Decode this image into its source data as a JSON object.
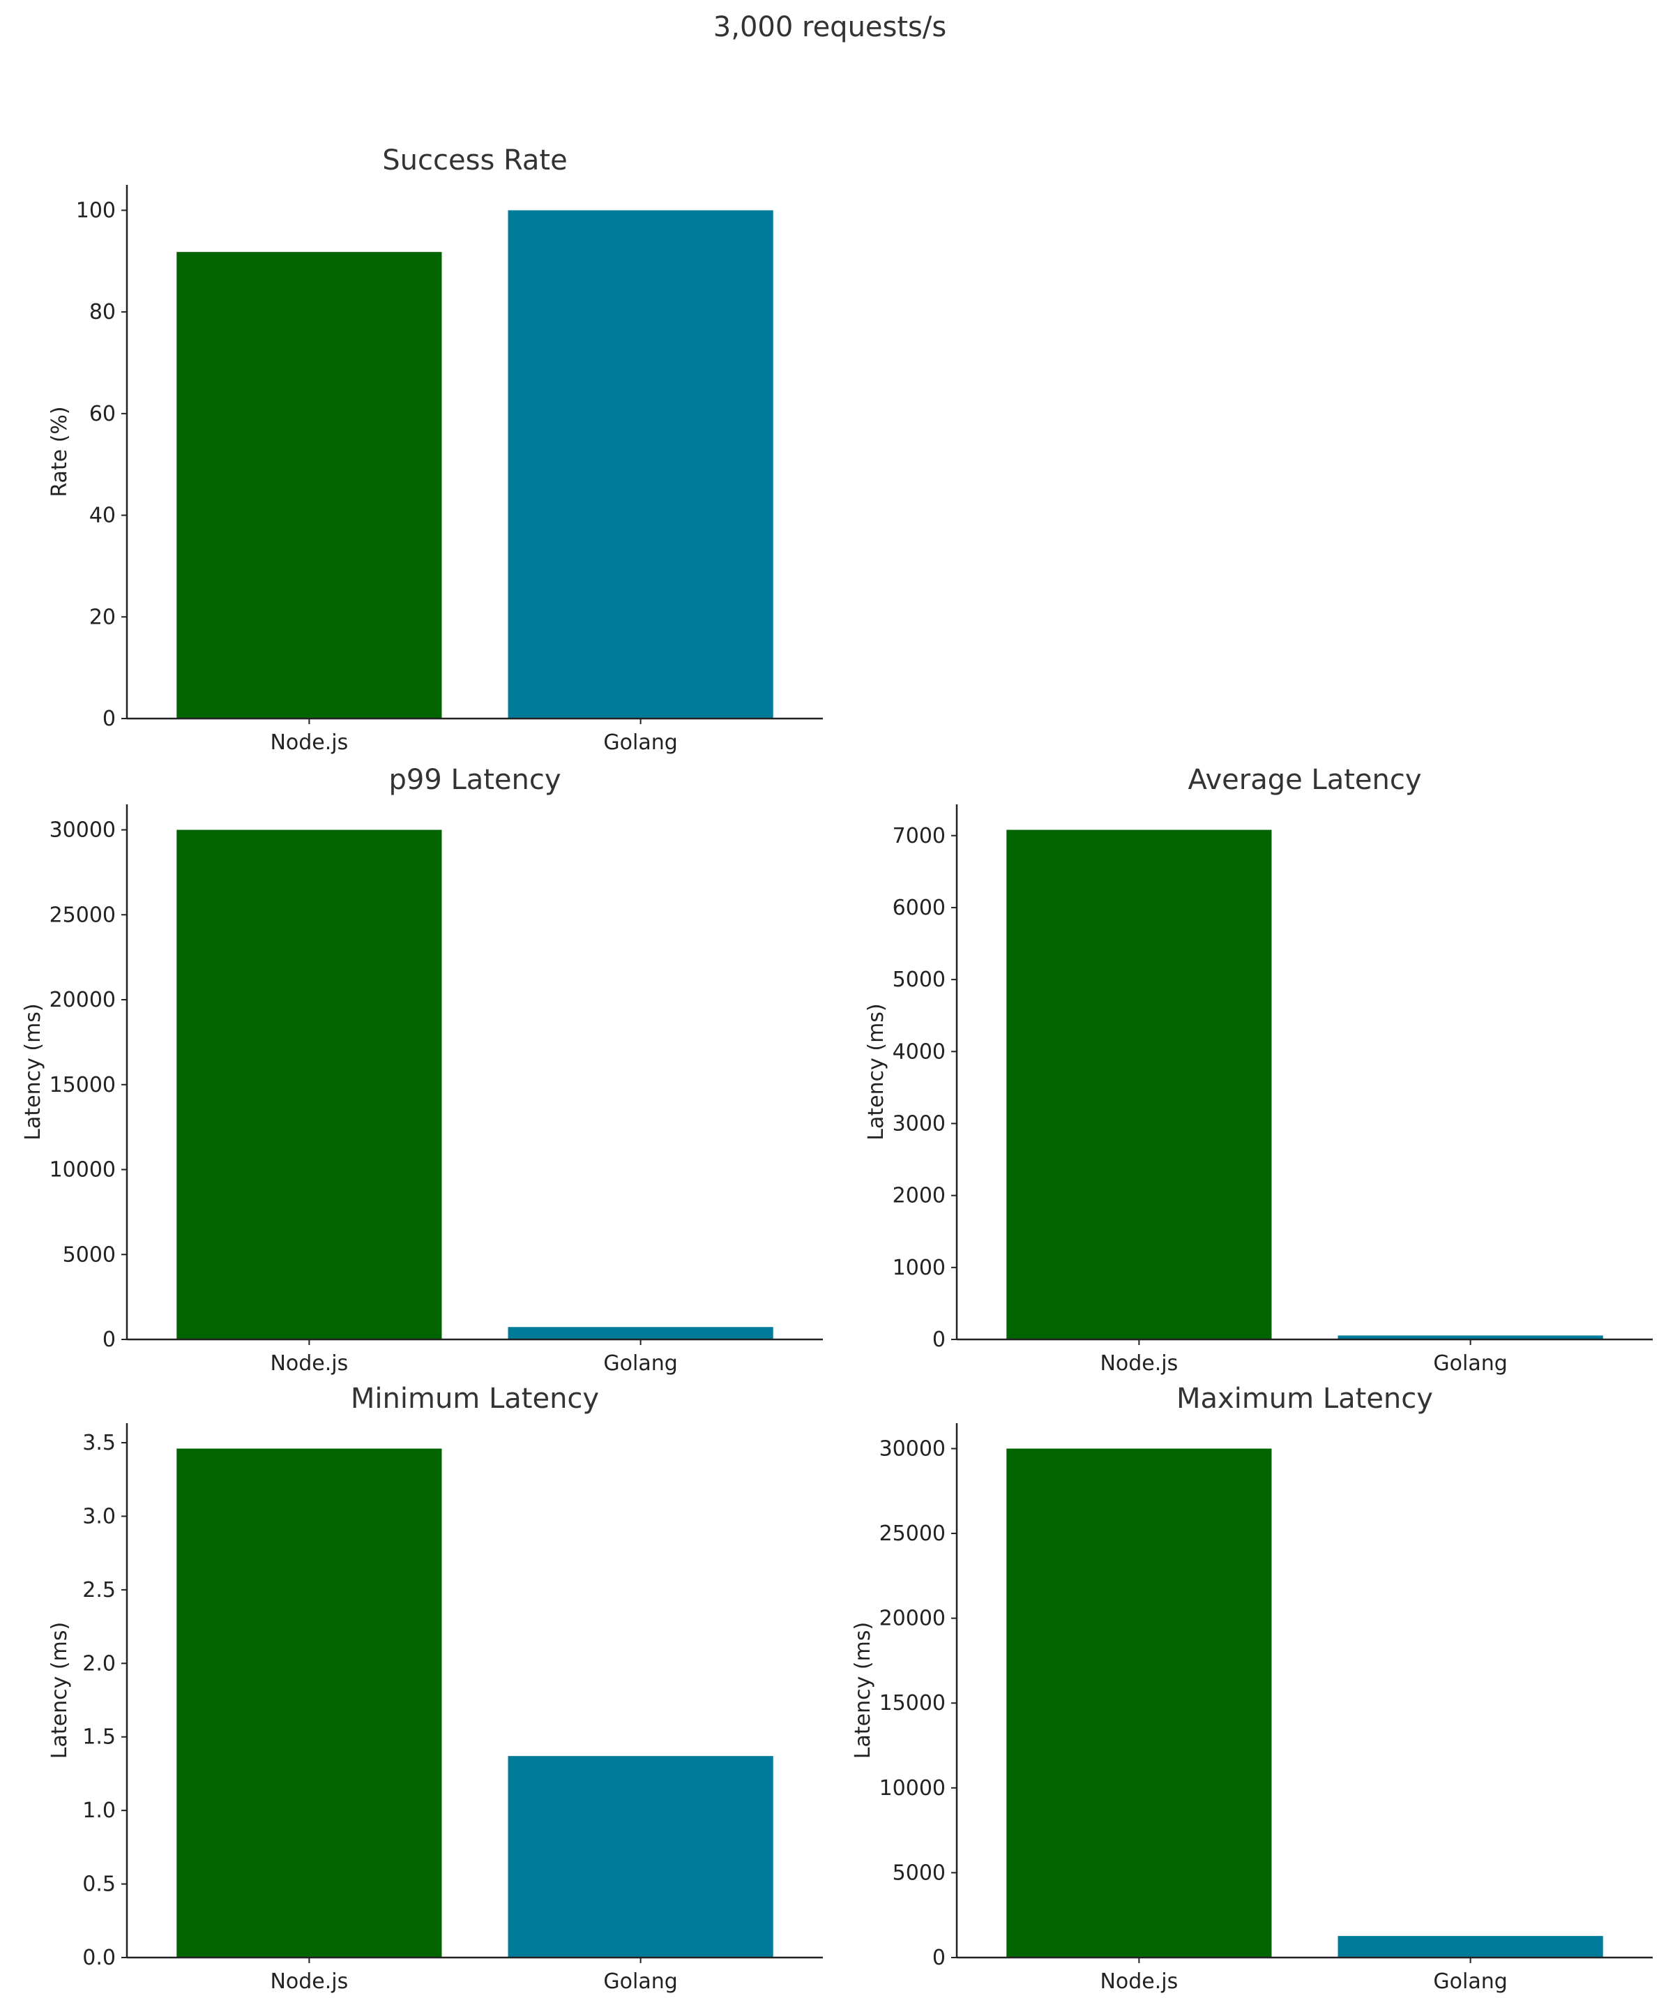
{
  "suptitle": "3,000 requests/s",
  "colors": {
    "Node.js": "#006400",
    "Golang": "#007c9a"
  },
  "chart_data": [
    {
      "type": "bar",
      "title": "Success Rate",
      "ylabel": "Rate (%)",
      "categories": [
        "Node.js",
        "Golang"
      ],
      "values": [
        91.8,
        100
      ],
      "ylim": [
        0,
        105
      ],
      "yticks": [
        0,
        20,
        40,
        60,
        80,
        100
      ],
      "ytick_labels": [
        "0",
        "20",
        "40",
        "60",
        "80",
        "100"
      ]
    },
    {
      "type": "bar",
      "title": "p99 Latency",
      "ylabel": "Latency (ms)",
      "categories": [
        "Node.js",
        "Golang"
      ],
      "values": [
        30000,
        730
      ],
      "ylim": [
        0,
        31500
      ],
      "yticks": [
        0,
        5000,
        10000,
        15000,
        20000,
        25000,
        30000
      ],
      "ytick_labels": [
        "0",
        "5000",
        "10000",
        "15000",
        "20000",
        "25000",
        "30000"
      ]
    },
    {
      "type": "bar",
      "title": "Average Latency",
      "ylabel": "Latency (ms)",
      "categories": [
        "Node.js",
        "Golang"
      ],
      "values": [
        7080,
        55
      ],
      "ylim": [
        0,
        7434
      ],
      "yticks": [
        0,
        1000,
        2000,
        3000,
        4000,
        5000,
        6000,
        7000
      ],
      "ytick_labels": [
        "0",
        "1000",
        "2000",
        "3000",
        "4000",
        "5000",
        "6000",
        "7000"
      ]
    },
    {
      "type": "bar",
      "title": "Minimum Latency",
      "ylabel": "Latency (ms)",
      "categories": [
        "Node.js",
        "Golang"
      ],
      "values": [
        3.46,
        1.37
      ],
      "ylim": [
        0,
        3.633
      ],
      "yticks": [
        0,
        0.5,
        1,
        1.5,
        2,
        2.5,
        3,
        3.5
      ],
      "ytick_labels": [
        "0.0",
        "0.5",
        "1.0",
        "1.5",
        "2.0",
        "2.5",
        "3.0",
        "3.5"
      ]
    },
    {
      "type": "bar",
      "title": "Maximum Latency",
      "ylabel": "Latency (ms)",
      "categories": [
        "Node.js",
        "Golang"
      ],
      "values": [
        30000,
        1270
      ],
      "ylim": [
        0,
        31500
      ],
      "yticks": [
        0,
        5000,
        10000,
        15000,
        20000,
        25000,
        30000
      ],
      "ytick_labels": [
        "0",
        "5000",
        "10000",
        "15000",
        "20000",
        "25000",
        "30000"
      ]
    }
  ]
}
